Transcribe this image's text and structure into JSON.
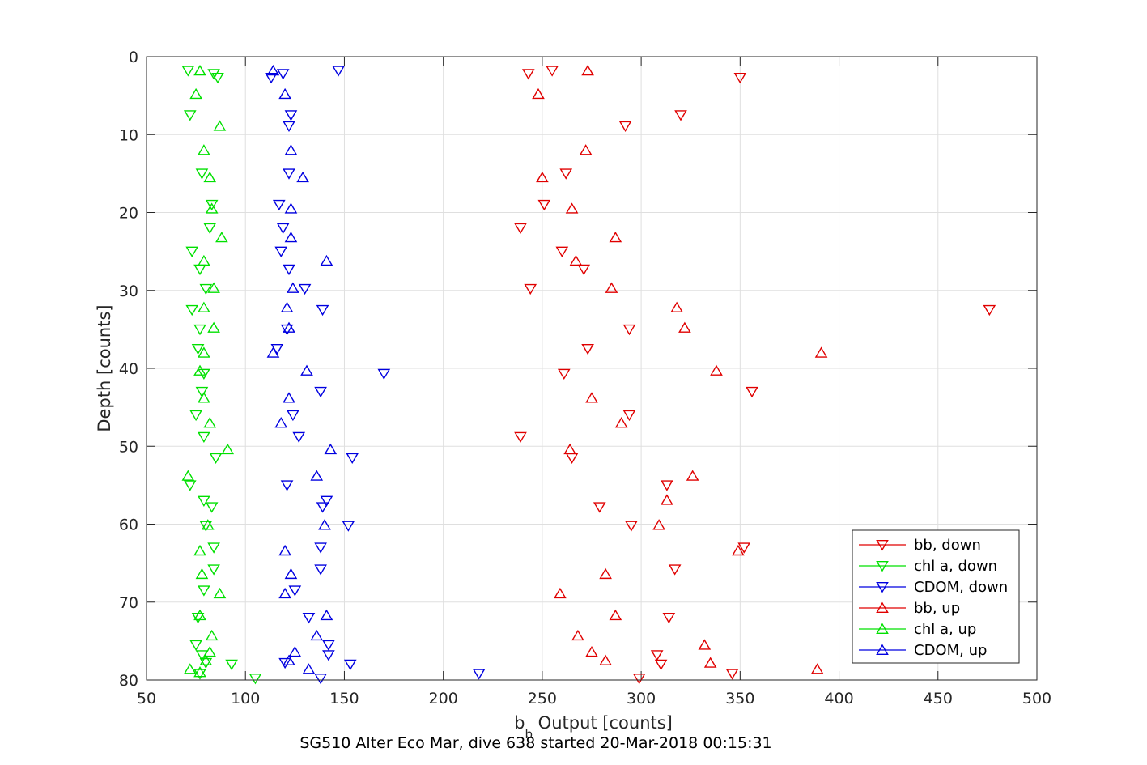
{
  "chart_data": {
    "type": "scatter",
    "xlabel": {
      "main": "b",
      "subscript": "b",
      "rest": " Output [counts]"
    },
    "ylabel": "Depth [counts]",
    "footer": "SG510 Alter Eco Mar, dive 638 started 20-Mar-2018 00:15:31",
    "xlim": [
      50,
      500
    ],
    "ylim": [
      0,
      80
    ],
    "y_reversed": true,
    "grid": true,
    "legend_position": "bottom-right",
    "x_ticks": [
      50,
      100,
      150,
      200,
      250,
      300,
      350,
      400,
      450,
      500
    ],
    "x_tick_labels": [
      "50",
      "100",
      "150",
      "200",
      "250",
      "300",
      "350",
      "400",
      "450",
      "500"
    ],
    "y_ticks": [
      0,
      10,
      20,
      30,
      40,
      50,
      60,
      70,
      80
    ],
    "y_tick_labels": [
      "0",
      "10",
      "20",
      "30",
      "40",
      "50",
      "60",
      "70",
      "80"
    ],
    "series": [
      {
        "name": "bb, down",
        "color": "#e00000",
        "marker": "triangle-down",
        "points": [
          [
            255,
            1.8
          ],
          [
            243,
            2.2
          ],
          [
            350,
            2.7
          ],
          [
            320,
            7.5
          ],
          [
            292,
            8.9
          ],
          [
            262,
            15
          ],
          [
            251,
            19
          ],
          [
            239,
            22
          ],
          [
            260,
            25
          ],
          [
            271,
            27.3
          ],
          [
            244,
            29.8
          ],
          [
            476,
            32.5
          ],
          [
            294,
            35
          ],
          [
            273,
            37.5
          ],
          [
            261,
            40.7
          ],
          [
            356,
            43
          ],
          [
            294,
            46
          ],
          [
            239,
            48.8
          ],
          [
            265,
            51.5
          ],
          [
            313,
            55
          ],
          [
            279,
            57.8
          ],
          [
            295,
            60.2
          ],
          [
            352,
            63
          ],
          [
            317,
            65.8
          ],
          [
            314,
            72
          ],
          [
            308,
            76.8
          ],
          [
            310,
            78
          ],
          [
            346,
            79.2
          ],
          [
            299,
            79.8
          ]
        ]
      },
      {
        "name": "chl a, down",
        "color": "#00e000",
        "marker": "triangle-down",
        "points": [
          [
            71,
            1.8
          ],
          [
            84,
            2.2
          ],
          [
            86,
            2.7
          ],
          [
            72,
            7.5
          ],
          [
            78,
            15
          ],
          [
            83,
            19
          ],
          [
            82,
            22
          ],
          [
            73,
            25
          ],
          [
            77,
            27.3
          ],
          [
            80,
            29.8
          ],
          [
            73,
            32.5
          ],
          [
            77,
            35
          ],
          [
            76,
            37.5
          ],
          [
            79,
            40.7
          ],
          [
            78,
            43
          ],
          [
            75,
            46
          ],
          [
            79,
            48.8
          ],
          [
            85,
            51.5
          ],
          [
            72,
            55
          ],
          [
            79,
            57
          ],
          [
            83,
            57.8
          ],
          [
            80,
            60.2
          ],
          [
            84,
            63
          ],
          [
            84,
            65.8
          ],
          [
            79,
            68.5
          ],
          [
            76,
            72
          ],
          [
            75,
            75.5
          ],
          [
            78,
            76.8
          ],
          [
            80,
            77.8
          ],
          [
            93,
            78
          ],
          [
            77,
            79.2
          ],
          [
            105,
            79.8
          ]
        ]
      },
      {
        "name": "CDOM, down",
        "color": "#0000e0",
        "marker": "triangle-down",
        "points": [
          [
            147,
            1.8
          ],
          [
            119,
            2.2
          ],
          [
            113,
            2.7
          ],
          [
            123,
            7.5
          ],
          [
            122,
            8.9
          ],
          [
            122,
            15
          ],
          [
            117,
            19
          ],
          [
            119,
            22
          ],
          [
            118,
            25
          ],
          [
            122,
            27.3
          ],
          [
            130,
            29.8
          ],
          [
            139,
            32.5
          ],
          [
            121,
            35
          ],
          [
            116,
            37.5
          ],
          [
            170,
            40.7
          ],
          [
            138,
            43
          ],
          [
            124,
            46
          ],
          [
            127,
            48.8
          ],
          [
            154,
            51.5
          ],
          [
            121,
            55
          ],
          [
            141,
            57
          ],
          [
            139,
            57.8
          ],
          [
            152,
            60.2
          ],
          [
            138,
            63
          ],
          [
            138,
            65.8
          ],
          [
            125,
            68.5
          ],
          [
            132,
            72
          ],
          [
            142,
            75.5
          ],
          [
            142,
            76.8
          ],
          [
            120,
            77.8
          ],
          [
            153,
            78
          ],
          [
            218,
            79.2
          ],
          [
            138,
            79.8
          ]
        ]
      },
      {
        "name": "bb, up",
        "color": "#e00000",
        "marker": "triangle-up",
        "points": [
          [
            273,
            1.8
          ],
          [
            248,
            4.8
          ],
          [
            272,
            12
          ],
          [
            250,
            15.5
          ],
          [
            265,
            19.5
          ],
          [
            287,
            23.2
          ],
          [
            267,
            26.2
          ],
          [
            285,
            29.7
          ],
          [
            318,
            32.2
          ],
          [
            322,
            34.8
          ],
          [
            391,
            38
          ],
          [
            338,
            40.3
          ],
          [
            275,
            43.8
          ],
          [
            290,
            47
          ],
          [
            264,
            50.4
          ],
          [
            326,
            53.8
          ],
          [
            313,
            56.9
          ],
          [
            309,
            60.1
          ],
          [
            349,
            63.4
          ],
          [
            282,
            66.4
          ],
          [
            259,
            68.9
          ],
          [
            287,
            71.7
          ],
          [
            268,
            74.3
          ],
          [
            332,
            75.5
          ],
          [
            275,
            76.4
          ],
          [
            282,
            77.5
          ],
          [
            335,
            77.8
          ],
          [
            389,
            78.6
          ]
        ]
      },
      {
        "name": "chl a, up",
        "color": "#00e000",
        "marker": "triangle-up",
        "points": [
          [
            77,
            1.8
          ],
          [
            75,
            4.8
          ],
          [
            87,
            8.9
          ],
          [
            79,
            12
          ],
          [
            82,
            15.5
          ],
          [
            83,
            19.5
          ],
          [
            88,
            23.2
          ],
          [
            79,
            26.2
          ],
          [
            84,
            29.7
          ],
          [
            79,
            32.2
          ],
          [
            84,
            34.8
          ],
          [
            79,
            38
          ],
          [
            77,
            40.3
          ],
          [
            79,
            43.8
          ],
          [
            82,
            47
          ],
          [
            91,
            50.4
          ],
          [
            71,
            53.8
          ],
          [
            81,
            60.1
          ],
          [
            77,
            63.4
          ],
          [
            78,
            66.4
          ],
          [
            87,
            68.9
          ],
          [
            77,
            71.7
          ],
          [
            83,
            74.3
          ],
          [
            82,
            76.4
          ],
          [
            80,
            77.5
          ],
          [
            72,
            78.6
          ],
          [
            77,
            79
          ]
        ]
      },
      {
        "name": "CDOM, up",
        "color": "#0000e0",
        "marker": "triangle-up",
        "points": [
          [
            114,
            1.8
          ],
          [
            120,
            4.8
          ],
          [
            123,
            12
          ],
          [
            129,
            15.5
          ],
          [
            123,
            19.5
          ],
          [
            123,
            23.2
          ],
          [
            141,
            26.2
          ],
          [
            124,
            29.7
          ],
          [
            121,
            32.2
          ],
          [
            122,
            34.8
          ],
          [
            114,
            38
          ],
          [
            131,
            40.3
          ],
          [
            122,
            43.8
          ],
          [
            118,
            47
          ],
          [
            143,
            50.4
          ],
          [
            136,
            53.8
          ],
          [
            140,
            60.1
          ],
          [
            120,
            63.4
          ],
          [
            123,
            66.4
          ],
          [
            120,
            68.9
          ],
          [
            141,
            71.7
          ],
          [
            136,
            74.3
          ],
          [
            125,
            76.4
          ],
          [
            122,
            77.5
          ],
          [
            132,
            78.6
          ]
        ]
      }
    ]
  }
}
